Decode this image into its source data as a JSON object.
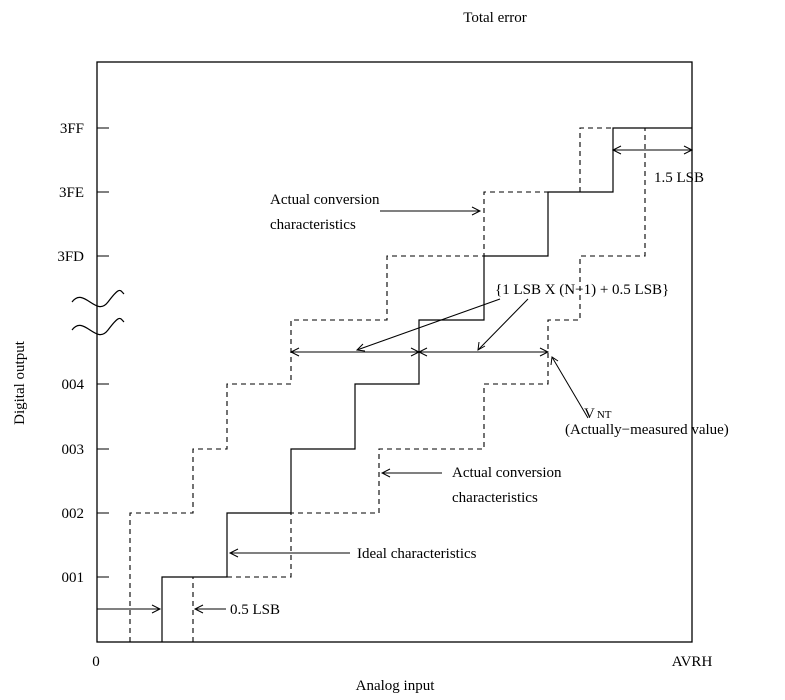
{
  "title": "Total error",
  "axes": {
    "x_label": "Analog input",
    "y_label": "Digital output",
    "x_origin": "0",
    "x_end": "AVRH",
    "y_ticks": [
      "001",
      "002",
      "003",
      "004",
      "3FD",
      "3FE",
      "3FF"
    ]
  },
  "labels": {
    "actual_upper": [
      "Actual conversion",
      "characteristics"
    ],
    "actual_lower": [
      "Actual conversion",
      "characteristics"
    ],
    "ideal": "Ideal characteristics",
    "formula": "{1 LSB X (N−1) + 0.5 LSB}",
    "vnt_main": "V",
    "vnt_sub": "NT",
    "measured": "(Actually−measured value)",
    "offset_half": "0.5 LSB",
    "offset_top": "1.5 LSB"
  }
}
